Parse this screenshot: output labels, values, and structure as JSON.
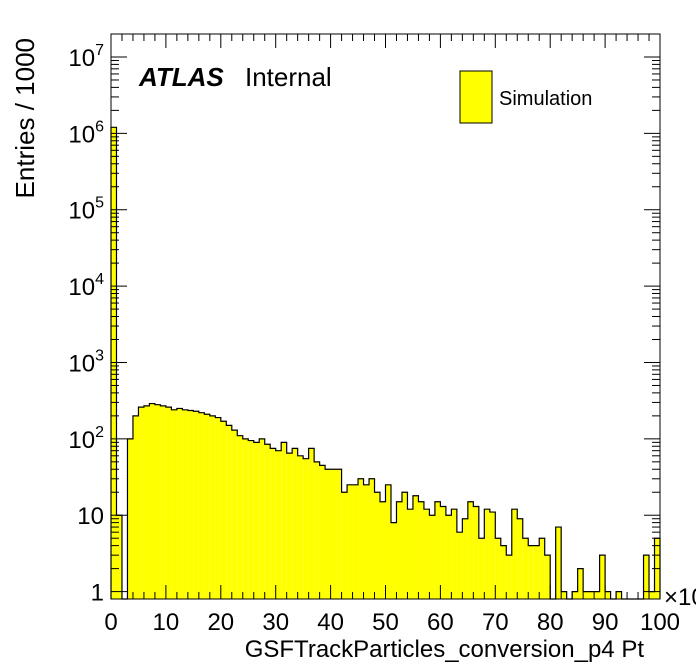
{
  "chart_data": {
    "type": "bar",
    "style": "histogram",
    "scale_y": "log",
    "fill_color": "#ffff00",
    "edge_color": "#000000",
    "xlabel": "GSFTrackParticles_conversion_p4 Pt",
    "ylabel": "Entries / 1000",
    "x_exponent_label": "×10",
    "xlim": [
      0,
      100
    ],
    "ylim": [
      0.8,
      20000000
    ],
    "xticks": [
      "0",
      "10",
      "20",
      "30",
      "40",
      "50",
      "60",
      "70",
      "80",
      "90",
      "100"
    ],
    "yticks": [
      {
        "value": 1,
        "base": "1",
        "exp": ""
      },
      {
        "value": 10,
        "base": "10",
        "exp": ""
      },
      {
        "value": 100,
        "base": "10",
        "exp": "2"
      },
      {
        "value": 1000,
        "base": "10",
        "exp": "3"
      },
      {
        "value": 10000,
        "base": "10",
        "exp": "4"
      },
      {
        "value": 100000,
        "base": "10",
        "exp": "5"
      },
      {
        "value": 1000000,
        "base": "10",
        "exp": "6"
      },
      {
        "value": 10000000,
        "base": "10",
        "exp": "7"
      }
    ],
    "bin_width": 1,
    "x_start": 0,
    "values": [
      1200000,
      10,
      0,
      100,
      200,
      260,
      270,
      290,
      280,
      270,
      260,
      240,
      250,
      240,
      235,
      230,
      220,
      210,
      200,
      190,
      170,
      150,
      130,
      110,
      100,
      95,
      90,
      100,
      85,
      75,
      70,
      90,
      65,
      75,
      60,
      55,
      75,
      50,
      45,
      40,
      40,
      40,
      20,
      25,
      25,
      30,
      25,
      30,
      20,
      15,
      25,
      8,
      15,
      20,
      12,
      18,
      15,
      12,
      10,
      15,
      13,
      10,
      12,
      6,
      9,
      15,
      13,
      5,
      12,
      11,
      5,
      4,
      3,
      12,
      9,
      5,
      4,
      4,
      5,
      3,
      0,
      7,
      1,
      0,
      1,
      2,
      1,
      1,
      1,
      3,
      1,
      0,
      1,
      0,
      0,
      0,
      0,
      3,
      1,
      5
    ],
    "legend": {
      "entries": [
        "Simulation"
      ],
      "position": "top-right"
    },
    "annotation": {
      "bold": "ATLAS",
      "regular": "Internal"
    }
  }
}
